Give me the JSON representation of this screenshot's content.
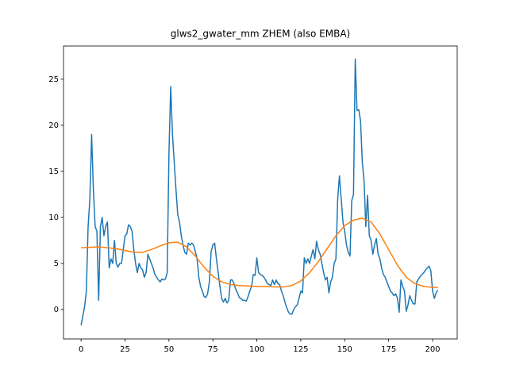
{
  "chart_data": {
    "type": "line",
    "title": "glws2_gwater_mm ZHEM (also EMBA)",
    "xlim": [
      -10,
      214
    ],
    "ylim": [
      -3.2,
      28.6
    ],
    "xticks": [
      0,
      25,
      50,
      75,
      100,
      125,
      150,
      175,
      200
    ],
    "yticks": [
      0,
      5,
      10,
      15,
      20,
      25
    ],
    "series": [
      {
        "color": "#1f77b4",
        "x": [
          0,
          1,
          2,
          3,
          4,
          5,
          6,
          7,
          8,
          9,
          10,
          11,
          12,
          13,
          14,
          15,
          16,
          17,
          18,
          19,
          20,
          21,
          22,
          23,
          24,
          25,
          26,
          27,
          28,
          29,
          30,
          31,
          32,
          33,
          34,
          35,
          36,
          37,
          38,
          39,
          40,
          41,
          42,
          43,
          44,
          45,
          46,
          47,
          48,
          49,
          50,
          51,
          52,
          53,
          54,
          55,
          56,
          57,
          58,
          59,
          60,
          61,
          62,
          63,
          64,
          65,
          66,
          67,
          68,
          69,
          70,
          71,
          72,
          73,
          74,
          75,
          76,
          77,
          78,
          79,
          80,
          81,
          82,
          83,
          84,
          85,
          86,
          87,
          88,
          89,
          90,
          91,
          92,
          93,
          94,
          95,
          96,
          97,
          98,
          99,
          100,
          101,
          102,
          103,
          104,
          105,
          106,
          107,
          108,
          109,
          110,
          111,
          112,
          113,
          114,
          115,
          116,
          117,
          118,
          119,
          120,
          121,
          122,
          123,
          124,
          125,
          126,
          127,
          128,
          129,
          130,
          131,
          132,
          133,
          134,
          135,
          136,
          137,
          138,
          139,
          140,
          141,
          142,
          143,
          144,
          145,
          146,
          147,
          148,
          149,
          150,
          151,
          152,
          153,
          154,
          155,
          156,
          157,
          158,
          159,
          160,
          161,
          162,
          163,
          164,
          165,
          166,
          167,
          168,
          169,
          170,
          171,
          172,
          173,
          174,
          175,
          176,
          177,
          178,
          179,
          180,
          181,
          182,
          183,
          184,
          185,
          186,
          187,
          188,
          189,
          190,
          191,
          192,
          193,
          194,
          195,
          196,
          197,
          198,
          199,
          200,
          201,
          202,
          203
        ],
        "values": [
          -1.7,
          -0.7,
          0.3,
          2,
          9,
          12,
          19,
          13,
          9,
          8.5,
          1,
          9,
          10,
          8,
          9,
          9.5,
          4.5,
          5.5,
          5,
          7.5,
          5,
          4.6,
          5,
          5,
          6.5,
          8,
          8.2,
          9.2,
          9,
          8.5,
          6.5,
          5,
          4,
          5,
          4.5,
          4.3,
          3.5,
          4,
          6,
          5.5,
          5,
          4.5,
          3.8,
          3.5,
          3.2,
          3,
          3.3,
          3.2,
          3.3,
          4,
          17,
          24.2,
          19,
          16,
          13,
          10.3,
          9.5,
          8,
          7,
          6.2,
          6,
          7.2,
          7,
          7.2,
          7,
          6.3,
          5.5,
          3.5,
          2.5,
          2,
          1.4,
          1.3,
          1.7,
          3,
          6.3,
          7,
          7.2,
          5.5,
          4,
          2.5,
          1.2,
          0.8,
          1.2,
          0.7,
          1,
          3.2,
          3.2,
          2.8,
          2.2,
          1.8,
          1.3,
          1.2,
          1,
          1,
          0.9,
          1.4,
          2,
          2.5,
          3.8,
          3.7,
          5.6,
          4,
          3.8,
          3.7,
          3.5,
          3.2,
          2.8,
          2.7,
          2.6,
          3.2,
          2.7,
          3.2,
          2.8,
          2.7,
          2,
          1.5,
          0.8,
          0.2,
          -0.3,
          -0.5,
          -0.5,
          0,
          0.3,
          0.5,
          1.2,
          2,
          1.8,
          5.6,
          5,
          5.5,
          5,
          5.8,
          6.5,
          5.5,
          7.4,
          6.5,
          6,
          5,
          4,
          3.2,
          3.5,
          1.8,
          3,
          3.5,
          5,
          5.5,
          12,
          14.5,
          12,
          9.5,
          8.5,
          7,
          6.2,
          5.8,
          11.8,
          12.5,
          27.2,
          21.6,
          21.7,
          20.5,
          16,
          14,
          9,
          12.4,
          8,
          7.5,
          6,
          7,
          7.7,
          6,
          5.5,
          4.5,
          3.8,
          3.5,
          3,
          2.5,
          2,
          1.8,
          1.5,
          1.7,
          1.2,
          -0.3,
          3.2,
          2.5,
          2,
          -0.2,
          0.5,
          1.5,
          1,
          0.6,
          0.6,
          3,
          3.3,
          3.6,
          3.8,
          4,
          4.3,
          4.5,
          4.7,
          4.2,
          2,
          1.2,
          1.8,
          2.1
        ]
      },
      {
        "color": "#ff7f0e",
        "x": [
          0,
          10,
          20,
          30,
          35,
          40,
          45,
          50,
          55,
          60,
          65,
          70,
          75,
          80,
          85,
          90,
          95,
          100,
          105,
          110,
          115,
          120,
          125,
          130,
          135,
          140,
          145,
          150,
          155,
          160,
          165,
          170,
          175,
          180,
          185,
          190,
          195,
          200,
          203
        ],
        "values": [
          6.7,
          6.8,
          6.6,
          6.2,
          6.2,
          6.5,
          6.9,
          7.25,
          7.3,
          6.8,
          5.8,
          4.6,
          3.6,
          3,
          2.7,
          2.6,
          2.55,
          2.5,
          2.5,
          2.45,
          2.45,
          2.6,
          3.1,
          4,
          5.2,
          6.6,
          8,
          9.1,
          9.7,
          9.9,
          9.5,
          8.2,
          6.5,
          4.8,
          3.5,
          2.8,
          2.5,
          2.4,
          2.4
        ]
      }
    ]
  }
}
